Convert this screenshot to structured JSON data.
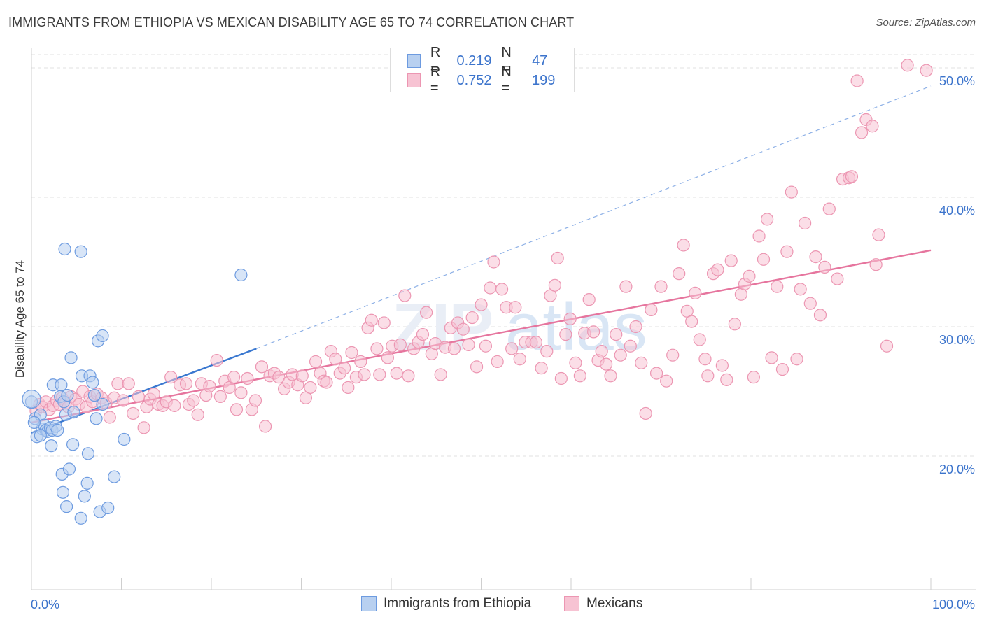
{
  "title": "IMMIGRANTS FROM ETHIOPIA VS MEXICAN DISABILITY AGE 65 TO 74 CORRELATION CHART",
  "source": "Source: ZipAtlas.com",
  "watermark": "ZIPatlas",
  "colors": {
    "ethiopia_fill": "#b8d0f0",
    "ethiopia_stroke": "#6d9be0",
    "ethiopia_line": "#3a78d0",
    "mexican_fill": "#f7c3d3",
    "mexican_stroke": "#ec96b2",
    "mexican_line": "#e6759e",
    "value_text": "#3c74cc",
    "grid": "#e2e2e2"
  },
  "legend_top": [
    {
      "series": "ethiopia",
      "r_label": "R =",
      "r_value": "0.219",
      "n_label": "N =",
      "n_value": "47"
    },
    {
      "series": "mexican",
      "r_label": "R =",
      "r_value": "0.752",
      "n_label": "N =",
      "n_value": "199"
    }
  ],
  "legend_bottom": [
    {
      "series": "ethiopia",
      "label": "Immigrants from Ethiopia"
    },
    {
      "series": "mexican",
      "label": "Mexicans"
    }
  ],
  "chart_data": {
    "type": "scatter",
    "title": "IMMIGRANTS FROM ETHIOPIA VS MEXICAN DISABILITY AGE 65 TO 74 CORRELATION CHART",
    "xlabel": "",
    "ylabel": "Disability Age 65 to 74",
    "xlim": [
      0,
      100
    ],
    "ylim": [
      10,
      52
    ],
    "x_tick_labels": [
      "0.0%",
      "100.0%"
    ],
    "y_ticks": [
      20,
      30,
      40,
      50
    ],
    "y_tick_labels": [
      "20.0%",
      "30.0%",
      "40.0%",
      "50.0%"
    ],
    "grid": true,
    "legend_placement": "top-center and bottom",
    "series": [
      {
        "name": "Immigrants from Ethiopia",
        "R": 0.219,
        "N": 47,
        "trend_solid": [
          [
            0,
            21.8
          ],
          [
            25,
            28.3
          ]
        ],
        "trend_dashed": [
          [
            25,
            28.3
          ],
          [
            100,
            48.6
          ]
        ],
        "points": [
          [
            0.0,
            24.2
          ],
          [
            0.4,
            22.9
          ],
          [
            0.6,
            21.5
          ],
          [
            1.0,
            23.2
          ],
          [
            1.2,
            22.1
          ],
          [
            1.4,
            22.4
          ],
          [
            1.6,
            22.0
          ],
          [
            1.8,
            21.9
          ],
          [
            2.1,
            22.2
          ],
          [
            2.2,
            20.8
          ],
          [
            2.3,
            22.0
          ],
          [
            2.4,
            25.5
          ],
          [
            2.7,
            22.3
          ],
          [
            2.9,
            22.0
          ],
          [
            3.2,
            24.6
          ],
          [
            3.3,
            25.5
          ],
          [
            3.4,
            18.6
          ],
          [
            3.5,
            17.2
          ],
          [
            3.6,
            24.2
          ],
          [
            3.7,
            36.0
          ],
          [
            3.8,
            23.2
          ],
          [
            3.9,
            16.1
          ],
          [
            4.0,
            24.7
          ],
          [
            4.2,
            19.0
          ],
          [
            4.4,
            27.6
          ],
          [
            4.6,
            20.9
          ],
          [
            4.7,
            23.4
          ],
          [
            5.5,
            15.2
          ],
          [
            5.5,
            35.8
          ],
          [
            5.6,
            26.2
          ],
          [
            5.9,
            16.9
          ],
          [
            6.2,
            17.9
          ],
          [
            6.3,
            20.2
          ],
          [
            6.5,
            26.2
          ],
          [
            6.8,
            25.7
          ],
          [
            7.0,
            24.7
          ],
          [
            7.2,
            22.9
          ],
          [
            7.4,
            28.9
          ],
          [
            7.6,
            15.7
          ],
          [
            7.9,
            29.3
          ],
          [
            7.9,
            24.0
          ],
          [
            8.5,
            16.0
          ],
          [
            9.2,
            18.4
          ],
          [
            10.3,
            21.3
          ],
          [
            23.3,
            34.0
          ],
          [
            0.3,
            22.6
          ],
          [
            1.0,
            21.6
          ]
        ]
      },
      {
        "name": "Mexicans",
        "R": 0.752,
        "N": 199,
        "trend": [
          [
            0,
            22.6
          ],
          [
            100,
            35.9
          ]
        ],
        "points": [
          [
            0.5,
            23.5
          ],
          [
            0.9,
            24.0
          ],
          [
            1.2,
            23.8
          ],
          [
            1.6,
            24.2
          ],
          [
            2.0,
            23.6
          ],
          [
            2.4,
            23.9
          ],
          [
            2.8,
            24.3
          ],
          [
            3.1,
            24.0
          ],
          [
            3.4,
            24.5
          ],
          [
            3.8,
            24.1
          ],
          [
            4.1,
            23.8
          ],
          [
            4.4,
            24.6
          ],
          [
            4.9,
            24.4
          ],
          [
            5.3,
            24.0
          ],
          [
            5.7,
            25.0
          ],
          [
            6.1,
            23.8
          ],
          [
            6.5,
            24.6
          ],
          [
            6.8,
            24.2
          ],
          [
            7.3,
            24.8
          ],
          [
            7.8,
            24.5
          ],
          [
            8.3,
            24.1
          ],
          [
            8.7,
            23.0
          ],
          [
            9.2,
            24.5
          ],
          [
            9.6,
            25.6
          ],
          [
            10.2,
            24.3
          ],
          [
            10.8,
            25.6
          ],
          [
            11.3,
            23.3
          ],
          [
            11.9,
            24.6
          ],
          [
            12.5,
            22.2
          ],
          [
            12.8,
            23.8
          ],
          [
            13.2,
            24.4
          ],
          [
            13.6,
            24.8
          ],
          [
            14.1,
            24.0
          ],
          [
            14.6,
            23.9
          ],
          [
            15.0,
            24.2
          ],
          [
            15.5,
            26.1
          ],
          [
            15.9,
            23.9
          ],
          [
            16.5,
            25.5
          ],
          [
            17.2,
            25.6
          ],
          [
            17.5,
            24.0
          ],
          [
            18.0,
            24.3
          ],
          [
            18.5,
            23.2
          ],
          [
            18.9,
            25.6
          ],
          [
            19.4,
            24.7
          ],
          [
            19.8,
            25.4
          ],
          [
            20.6,
            27.4
          ],
          [
            21.0,
            24.6
          ],
          [
            21.5,
            25.8
          ],
          [
            22.0,
            25.3
          ],
          [
            22.5,
            26.1
          ],
          [
            22.8,
            23.6
          ],
          [
            23.3,
            24.9
          ],
          [
            24.0,
            26.0
          ],
          [
            24.5,
            23.6
          ],
          [
            24.9,
            24.3
          ],
          [
            25.6,
            26.9
          ],
          [
            26.0,
            22.3
          ],
          [
            26.5,
            26.2
          ],
          [
            27.0,
            26.4
          ],
          [
            27.5,
            26.1
          ],
          [
            28.1,
            25.2
          ],
          [
            28.6,
            25.7
          ],
          [
            29.0,
            26.3
          ],
          [
            29.6,
            25.5
          ],
          [
            30.1,
            26.2
          ],
          [
            30.5,
            24.5
          ],
          [
            31.0,
            25.3
          ],
          [
            31.6,
            27.3
          ],
          [
            32.1,
            26.4
          ],
          [
            32.5,
            25.8
          ],
          [
            32.8,
            25.7
          ],
          [
            33.3,
            28.1
          ],
          [
            33.8,
            27.5
          ],
          [
            34.3,
            26.4
          ],
          [
            34.8,
            26.8
          ],
          [
            35.2,
            25.3
          ],
          [
            35.6,
            28.0
          ],
          [
            36.1,
            26.1
          ],
          [
            36.6,
            27.3
          ],
          [
            37.0,
            26.3
          ],
          [
            37.4,
            29.9
          ],
          [
            37.8,
            30.5
          ],
          [
            38.4,
            28.3
          ],
          [
            38.7,
            26.3
          ],
          [
            39.2,
            30.3
          ],
          [
            39.6,
            27.6
          ],
          [
            40.1,
            28.5
          ],
          [
            40.6,
            26.4
          ],
          [
            41.0,
            28.6
          ],
          [
            41.5,
            32.4
          ],
          [
            41.9,
            26.2
          ],
          [
            42.5,
            28.3
          ],
          [
            43.0,
            28.8
          ],
          [
            43.5,
            29.4
          ],
          [
            43.9,
            31.1
          ],
          [
            44.5,
            27.9
          ],
          [
            44.9,
            28.7
          ],
          [
            45.5,
            26.3
          ],
          [
            46.0,
            28.4
          ],
          [
            46.6,
            29.9
          ],
          [
            47.0,
            28.3
          ],
          [
            47.4,
            30.3
          ],
          [
            48.0,
            29.8
          ],
          [
            48.6,
            28.6
          ],
          [
            49.0,
            30.7
          ],
          [
            49.5,
            26.9
          ],
          [
            50.0,
            31.7
          ],
          [
            50.5,
            28.5
          ],
          [
            51.0,
            33.0
          ],
          [
            51.4,
            35.0
          ],
          [
            51.8,
            27.3
          ],
          [
            52.3,
            32.9
          ],
          [
            52.8,
            31.5
          ],
          [
            53.4,
            28.3
          ],
          [
            53.8,
            31.5
          ],
          [
            54.3,
            27.5
          ],
          [
            54.9,
            28.8
          ],
          [
            55.6,
            28.8
          ],
          [
            56.1,
            28.8
          ],
          [
            56.7,
            26.8
          ],
          [
            57.3,
            28.1
          ],
          [
            57.7,
            32.4
          ],
          [
            58.2,
            33.2
          ],
          [
            58.5,
            35.3
          ],
          [
            58.9,
            26.0
          ],
          [
            59.4,
            29.4
          ],
          [
            59.9,
            30.6
          ],
          [
            60.5,
            27.2
          ],
          [
            61.0,
            26.2
          ],
          [
            61.5,
            29.5
          ],
          [
            62.0,
            32.1
          ],
          [
            62.5,
            29.6
          ],
          [
            63.0,
            27.4
          ],
          [
            63.4,
            28.1
          ],
          [
            63.9,
            27.1
          ],
          [
            64.4,
            26.2
          ],
          [
            65.0,
            29.4
          ],
          [
            65.5,
            27.8
          ],
          [
            66.1,
            33.1
          ],
          [
            66.6,
            28.5
          ],
          [
            67.2,
            30.0
          ],
          [
            67.8,
            27.2
          ],
          [
            68.3,
            23.3
          ],
          [
            68.9,
            31.3
          ],
          [
            69.5,
            26.4
          ],
          [
            70.0,
            33.1
          ],
          [
            70.6,
            25.8
          ],
          [
            71.3,
            27.8
          ],
          [
            72.0,
            34.1
          ],
          [
            72.5,
            36.3
          ],
          [
            72.9,
            31.2
          ],
          [
            73.4,
            30.4
          ],
          [
            73.8,
            32.6
          ],
          [
            74.3,
            29.0
          ],
          [
            74.9,
            27.5
          ],
          [
            75.2,
            26.2
          ],
          [
            75.8,
            34.1
          ],
          [
            76.3,
            34.4
          ],
          [
            76.8,
            27.0
          ],
          [
            77.3,
            25.9
          ],
          [
            77.8,
            35.1
          ],
          [
            78.2,
            30.2
          ],
          [
            78.9,
            32.5
          ],
          [
            79.3,
            33.3
          ],
          [
            79.8,
            33.9
          ],
          [
            80.3,
            26.1
          ],
          [
            80.9,
            37.0
          ],
          [
            81.4,
            35.2
          ],
          [
            81.8,
            38.3
          ],
          [
            82.3,
            27.6
          ],
          [
            82.9,
            33.1
          ],
          [
            83.5,
            26.7
          ],
          [
            84.0,
            35.8
          ],
          [
            84.5,
            40.4
          ],
          [
            85.1,
            27.5
          ],
          [
            85.5,
            32.9
          ],
          [
            86.0,
            38.0
          ],
          [
            86.6,
            31.8
          ],
          [
            87.2,
            35.4
          ],
          [
            87.7,
            30.9
          ],
          [
            88.2,
            34.6
          ],
          [
            88.7,
            39.1
          ],
          [
            89.6,
            33.7
          ],
          [
            90.2,
            41.4
          ],
          [
            90.9,
            41.5
          ],
          [
            91.2,
            41.6
          ],
          [
            92.3,
            45.0
          ],
          [
            92.8,
            46.0
          ],
          [
            93.5,
            45.5
          ],
          [
            94.2,
            37.1
          ],
          [
            95.1,
            28.5
          ],
          [
            97.4,
            50.2
          ],
          [
            99.5,
            49.8
          ],
          [
            91.8,
            49.0
          ],
          [
            93.9,
            34.8
          ]
        ]
      }
    ]
  }
}
